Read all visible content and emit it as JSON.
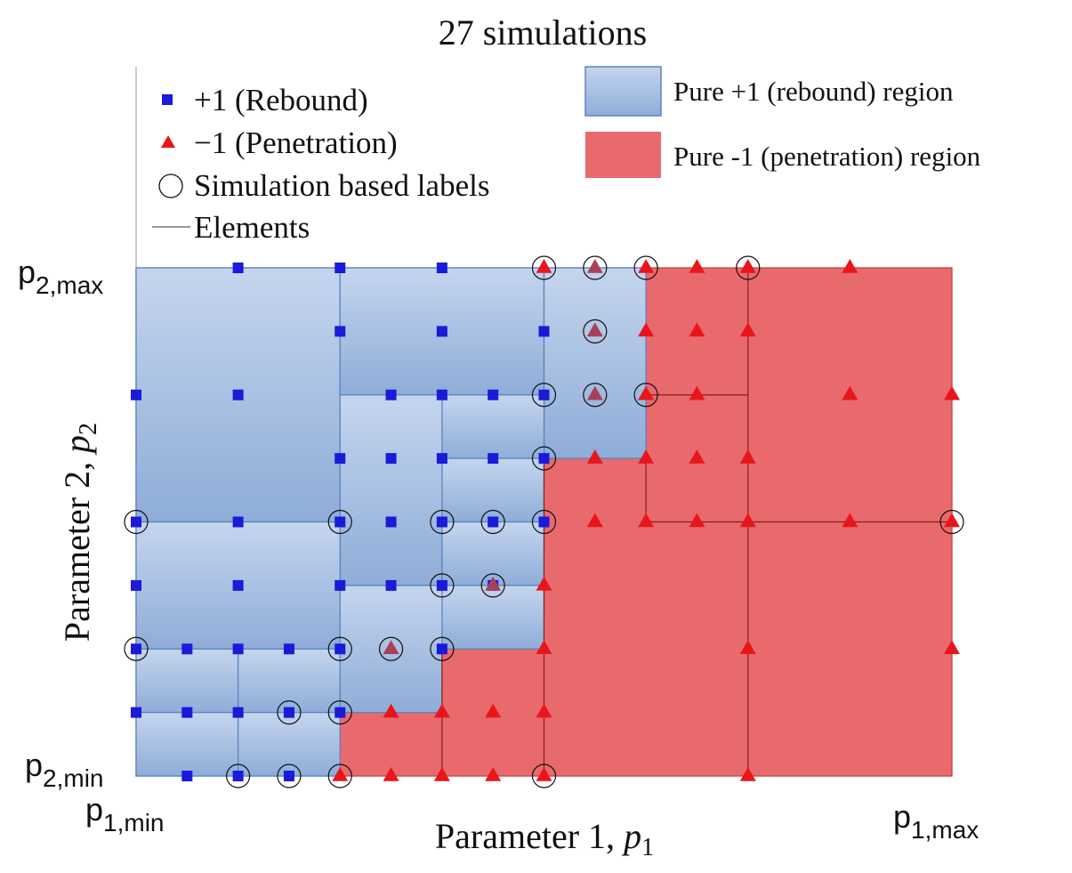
{
  "chart_data": {
    "type": "scatter",
    "title": "27 simulations",
    "xlabel": "Parameter 1, ",
    "xlabel_symbol": "p",
    "xlabel_sub": "1",
    "ylabel": "Parameter 2, ",
    "ylabel_symbol": "p",
    "ylabel_sub": "2",
    "axis_ticks": {
      "x_min": {
        "base": "p",
        "sub": "1,min"
      },
      "x_max": {
        "base": "p",
        "sub": "1,max"
      },
      "y_min": {
        "base": "p",
        "sub": "2,min"
      },
      "y_max": {
        "base": "p",
        "sub": "2,max"
      }
    },
    "xlim": [
      0,
      16
    ],
    "ylim": [
      0,
      8
    ],
    "legend_left": [
      {
        "key": "rebound",
        "label": "+1 (Rebound)",
        "marker": "square",
        "color": "#1a1ad8"
      },
      {
        "key": "penetration",
        "label": "−1 (Penetration)",
        "marker": "triangle",
        "color": "#e8161b"
      },
      {
        "key": "sim",
        "label": "Simulation based labels",
        "marker": "circle"
      },
      {
        "key": "elements",
        "label": "Elements",
        "marker": "line"
      }
    ],
    "legend_right": [
      {
        "key": "pure_rebound",
        "label": "Pure +1 (rebound) region",
        "color": "#9ab6e0"
      },
      {
        "key": "pure_penetration",
        "label": "Pure -1 (penetration) region",
        "color": "#e86a6d"
      }
    ],
    "colors": {
      "rebound_marker": "#1a1ad8",
      "penetration_marker": "#e8161b",
      "rebound_region_top": "#c5d5ee",
      "rebound_region_bottom": "#8eadd8",
      "rebound_region_edge": "#5b84c0",
      "penetration_region": "#e86a6d",
      "element_line": "#8a1c1c"
    },
    "penetration_region": [
      [
        4,
        0
      ],
      [
        4,
        1
      ],
      [
        6,
        1
      ],
      [
        6,
        2
      ],
      [
        8,
        2
      ],
      [
        8,
        5
      ],
      [
        10,
        5
      ],
      [
        10,
        8
      ],
      [
        16,
        8
      ],
      [
        16,
        0
      ]
    ],
    "rebound_elements": [
      [
        0,
        4,
        4,
        8
      ],
      [
        4,
        6,
        8,
        8
      ],
      [
        8,
        5,
        10,
        8
      ],
      [
        6,
        5,
        8,
        6
      ],
      [
        6,
        4,
        8,
        5
      ],
      [
        4,
        3,
        6,
        6
      ],
      [
        6,
        3,
        8,
        4
      ],
      [
        0,
        2,
        4,
        4
      ],
      [
        6,
        2,
        8,
        3
      ],
      [
        4,
        1,
        6,
        3
      ],
      [
        0,
        1,
        2,
        2
      ],
      [
        2,
        1,
        4,
        2
      ],
      [
        0,
        0,
        2,
        1
      ],
      [
        2,
        0,
        4,
        1
      ]
    ],
    "penetration_element_lines": [
      [
        [
          10,
          6
        ],
        [
          12,
          6
        ]
      ],
      [
        [
          10,
          4
        ],
        [
          16,
          4
        ]
      ],
      [
        [
          12,
          8
        ],
        [
          12,
          0
        ]
      ],
      [
        [
          10,
          5
        ],
        [
          10,
          4
        ]
      ],
      [
        [
          8,
          5
        ],
        [
          8,
          0
        ]
      ],
      [
        [
          6,
          2
        ],
        [
          6,
          0
        ]
      ]
    ],
    "rebound_points": [
      [
        2,
        8
      ],
      [
        4,
        8
      ],
      [
        6,
        8
      ],
      [
        4,
        7
      ],
      [
        6,
        7
      ],
      [
        8,
        7
      ],
      [
        0,
        6
      ],
      [
        2,
        6
      ],
      [
        5,
        6
      ],
      [
        6,
        6
      ],
      [
        7,
        6
      ],
      [
        8,
        6
      ],
      [
        4,
        5
      ],
      [
        5,
        5
      ],
      [
        6,
        5
      ],
      [
        7,
        5
      ],
      [
        8,
        5
      ],
      [
        0,
        4
      ],
      [
        2,
        4
      ],
      [
        4,
        4
      ],
      [
        5,
        4
      ],
      [
        6,
        4
      ],
      [
        7,
        4
      ],
      [
        8,
        4
      ],
      [
        0,
        3
      ],
      [
        2,
        3
      ],
      [
        4,
        3
      ],
      [
        5,
        3
      ],
      [
        6,
        3
      ],
      [
        7,
        3
      ],
      [
        0,
        2
      ],
      [
        1,
        2
      ],
      [
        2,
        2
      ],
      [
        3,
        2
      ],
      [
        4,
        2
      ],
      [
        6,
        2
      ],
      [
        0,
        1
      ],
      [
        1,
        1
      ],
      [
        2,
        1
      ],
      [
        3,
        1
      ],
      [
        4,
        1
      ],
      [
        1,
        0
      ],
      [
        2,
        0
      ],
      [
        3,
        0
      ]
    ],
    "penetration_points": [
      [
        8,
        8
      ],
      [
        9,
        8
      ],
      [
        10,
        8
      ],
      [
        11,
        8
      ],
      [
        12,
        8
      ],
      [
        14,
        8
      ],
      [
        9,
        7
      ],
      [
        10,
        7
      ],
      [
        11,
        7
      ],
      [
        12,
        7
      ],
      [
        9,
        6
      ],
      [
        10,
        6
      ],
      [
        11,
        6
      ],
      [
        14,
        6
      ],
      [
        16,
        6
      ],
      [
        9,
        5
      ],
      [
        10,
        5
      ],
      [
        11,
        5
      ],
      [
        12,
        5
      ],
      [
        9,
        4
      ],
      [
        10,
        4
      ],
      [
        11,
        4
      ],
      [
        12,
        4
      ],
      [
        14,
        4
      ],
      [
        16,
        4
      ],
      [
        7,
        3
      ],
      [
        8,
        3
      ],
      [
        5,
        2
      ],
      [
        8,
        2
      ],
      [
        12,
        2
      ],
      [
        16,
        2
      ],
      [
        5,
        1
      ],
      [
        6,
        1
      ],
      [
        7,
        1
      ],
      [
        8,
        1
      ],
      [
        4,
        0
      ],
      [
        5,
        0
      ],
      [
        6,
        0
      ],
      [
        7,
        0
      ],
      [
        8,
        0
      ],
      [
        12,
        0
      ]
    ],
    "ambiguous_points": [
      [
        9,
        8
      ],
      [
        9,
        7
      ],
      [
        9,
        6
      ],
      [
        7,
        3
      ],
      [
        5,
        2
      ]
    ],
    "simulation_points": [
      [
        8,
        8
      ],
      [
        9,
        8
      ],
      [
        10,
        8
      ],
      [
        12,
        8
      ],
      [
        9,
        7
      ],
      [
        8,
        6
      ],
      [
        9,
        6
      ],
      [
        10,
        6
      ],
      [
        8,
        5
      ],
      [
        0,
        4
      ],
      [
        4,
        4
      ],
      [
        6,
        4
      ],
      [
        7,
        4
      ],
      [
        8,
        4
      ],
      [
        16,
        4
      ],
      [
        6,
        3
      ],
      [
        7,
        3
      ],
      [
        0,
        2
      ],
      [
        4,
        2
      ],
      [
        5,
        2
      ],
      [
        6,
        2
      ],
      [
        3,
        1
      ],
      [
        4,
        1
      ],
      [
        2,
        0
      ],
      [
        3,
        0
      ],
      [
        4,
        0
      ],
      [
        8,
        0
      ]
    ]
  }
}
